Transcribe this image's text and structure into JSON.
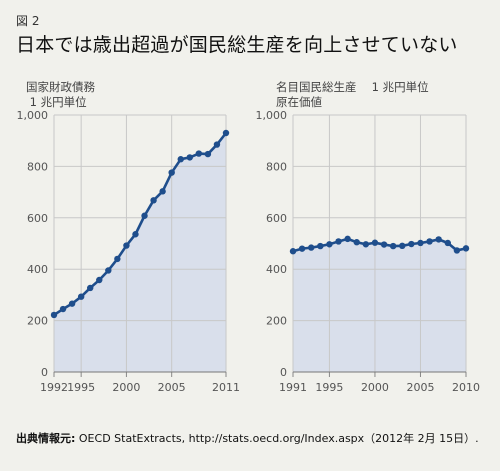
{
  "figure_label": "図 2",
  "title": "日本では歳出超過が国民総生産を向上させていない",
  "source_label": "出典情報元:",
  "source_text": " OECD StatExtracts, http://stats.oecd.org/Index.aspx（2012年 2月 15日）.",
  "colors": {
    "background": "#f1f1ec",
    "area_fill": "#d9dfeb",
    "line": "#1f4e8c",
    "grid": "#c8c8c8",
    "axis_text": "#555555"
  },
  "chart_data": [
    {
      "type": "area",
      "title": "国家財政債務\n 1 兆円単位",
      "xlabel": "",
      "ylabel": "",
      "xlim": [
        1992,
        2011
      ],
      "ylim": [
        0,
        1000
      ],
      "x_ticks": [
        1992,
        1995,
        2000,
        2005,
        2011
      ],
      "y_ticks": [
        0,
        200,
        400,
        600,
        800,
        1000
      ],
      "y_tick_labels": [
        "0",
        "200",
        "400",
        "600",
        "800",
        "1,000"
      ],
      "grid": true,
      "x": [
        1992,
        1993,
        1994,
        1995,
        1996,
        1997,
        1998,
        1999,
        2000,
        2001,
        2002,
        2003,
        2004,
        2005,
        2006,
        2007,
        2008,
        2009,
        2010,
        2011
      ],
      "y": [
        222,
        245,
        266,
        293,
        327,
        358,
        395,
        440,
        492,
        536,
        608,
        668,
        703,
        776,
        828,
        835,
        850,
        848,
        885,
        930
      ]
    },
    {
      "type": "area",
      "title": "名目国民総生産　 1 兆円単位\n原在価値",
      "xlabel": "",
      "ylabel": "",
      "xlim": [
        1991,
        2010
      ],
      "ylim": [
        0,
        1000
      ],
      "x_ticks": [
        1991,
        1995,
        2000,
        2005,
        2010
      ],
      "y_ticks": [
        0,
        200,
        400,
        600,
        800,
        1000
      ],
      "y_tick_labels": [
        "0",
        "200",
        "400",
        "600",
        "800",
        "1,000"
      ],
      "grid": true,
      "x": [
        1991,
        1992,
        1993,
        1994,
        1995,
        1996,
        1997,
        1998,
        1999,
        2000,
        2001,
        2002,
        2003,
        2004,
        2005,
        2006,
        2007,
        2008,
        2009,
        2010
      ],
      "y": [
        470,
        480,
        484,
        490,
        497,
        508,
        518,
        505,
        497,
        503,
        496,
        490,
        491,
        498,
        502,
        508,
        516,
        502,
        473,
        481
      ]
    }
  ]
}
